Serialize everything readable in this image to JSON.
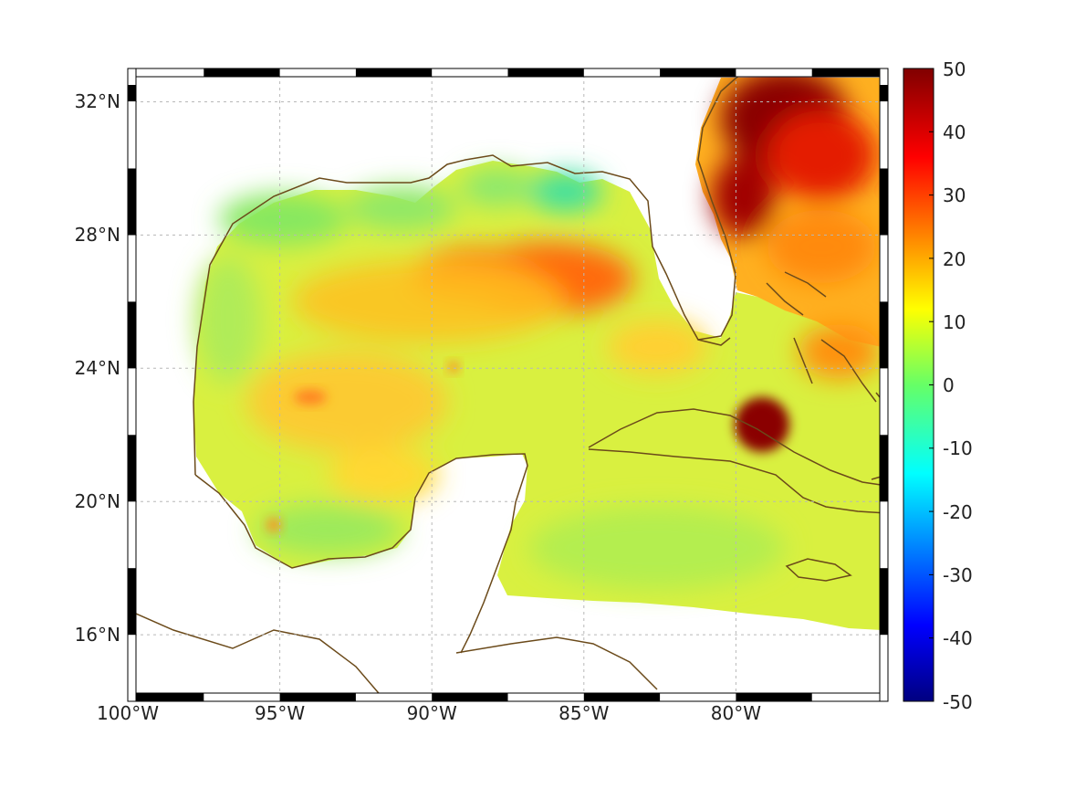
{
  "map": {
    "extent": {
      "lon": [
        -100,
        -75
      ],
      "lat": [
        14,
        33
      ]
    },
    "lon_ticks": [
      {
        "value": -100,
        "label": "100°W"
      },
      {
        "value": -95,
        "label": "95°W"
      },
      {
        "value": -90,
        "label": "90°W"
      },
      {
        "value": -85,
        "label": "85°W"
      },
      {
        "value": -80,
        "label": "80°W"
      }
    ],
    "lat_ticks": [
      {
        "value": 16,
        "label": "16°N"
      },
      {
        "value": 20,
        "label": "20°N"
      },
      {
        "value": 24,
        "label": "24°N"
      },
      {
        "value": 28,
        "label": "28°N"
      },
      {
        "value": 32,
        "label": "32°N"
      }
    ],
    "grid": true,
    "coastline_color": "#6b4a1a",
    "colormap": "jet",
    "colorbar": {
      "placement": "right",
      "range": [
        -50,
        50
      ],
      "ticks": [
        "50",
        "40",
        "30",
        "20",
        "10",
        "0",
        "-10",
        "-20",
        "-30",
        "-40",
        "-50"
      ]
    },
    "features": [
      {
        "name": "hot-spot-southeast-us-coast",
        "lon": -77.8,
        "lat": 31.2,
        "value": 52
      },
      {
        "name": "hot-spot-florida-atlantic",
        "lon": -79.3,
        "lat": 29.2,
        "value": 45
      },
      {
        "name": "hot-spot-central-gulf",
        "lon": -86.5,
        "lat": 26.9,
        "value": 27
      },
      {
        "name": "hot-spot-western-central-gulf",
        "lon": -88.5,
        "lat": 26.7,
        "value": 24
      },
      {
        "name": "hot-spot-cuba-north",
        "lon": -79.0,
        "lat": 22.8,
        "value": 50
      },
      {
        "name": "warm-area-bahamas",
        "lon": -76.0,
        "lat": 24.5,
        "value": 22
      },
      {
        "name": "warm-area-western-gulf",
        "lon": -93.0,
        "lat": 23.2,
        "value": 18
      },
      {
        "name": "cool-area-northeast-gulf",
        "lon": -85.3,
        "lat": 29.6,
        "value": 4
      },
      {
        "name": "cool-area-northwest-gulf",
        "lon": -93.0,
        "lat": 28.8,
        "value": 6
      }
    ]
  }
}
